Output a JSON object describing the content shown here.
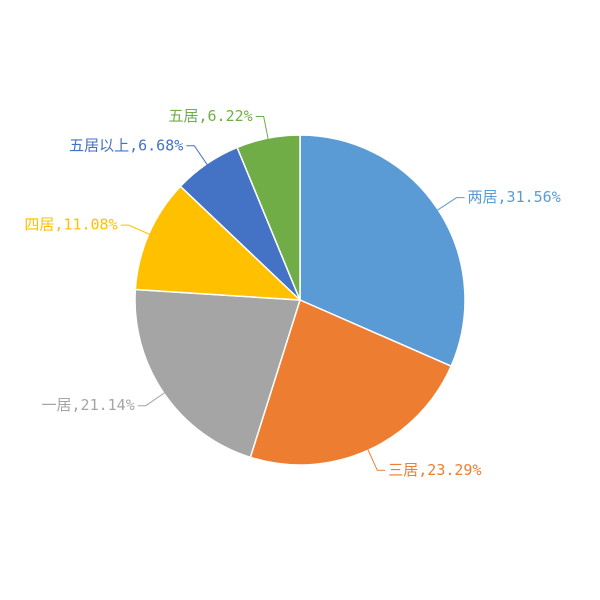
{
  "chart_data": {
    "type": "pie",
    "values": [
      31.56,
      23.29,
      21.14,
      11.08,
      6.68,
      6.22
    ],
    "value_labels": [
      "两居,31.56%",
      "三居,23.29%",
      "一居,21.14%",
      "四居,11.08%",
      "五居以上,6.68%",
      "五居,6.22%"
    ],
    "colors": [
      "#5b9bd5",
      "#ed7d31",
      "#a5a5a5",
      "#ffc000",
      "#4472c4",
      "#70ad47"
    ]
  }
}
